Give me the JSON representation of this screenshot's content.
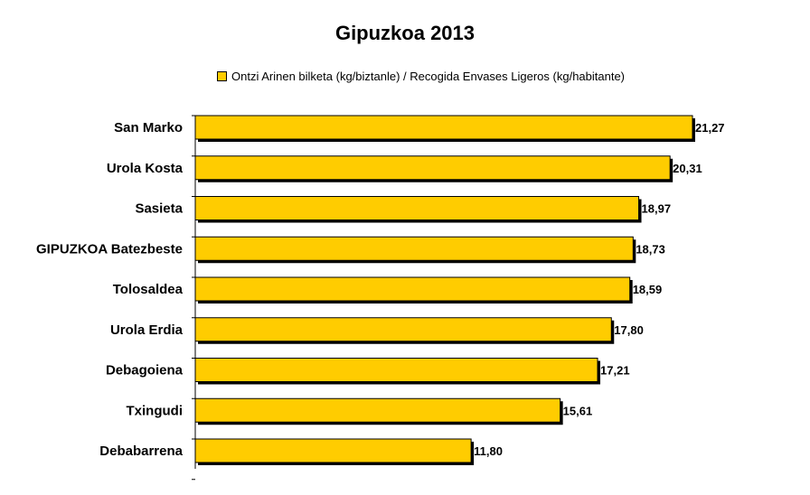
{
  "chart_data": {
    "type": "bar",
    "orientation": "horizontal",
    "title": "Gipuzkoa 2013",
    "categories": [
      "San Marko",
      "Urola Kosta",
      "Sasieta",
      "GIPUZKOA Batezbeste",
      "Tolosaldea",
      "Urola Erdia",
      "Debagoiena",
      "Txingudi",
      "Debabarrena"
    ],
    "series": [
      {
        "name": "Ontzi Arinen bilketa (kg/biztanle) / Recogida Envases Ligeros (kg/habitante)",
        "values": [
          21.27,
          20.31,
          18.97,
          18.73,
          18.59,
          17.8,
          17.21,
          15.61,
          11.8
        ],
        "value_labels": [
          "21,27",
          "20,31",
          "18,97",
          "18,73",
          "18,59",
          "17,80",
          "17,21",
          "15,61",
          "11,80"
        ],
        "color": "#FFCC00"
      }
    ],
    "xlim": [
      0,
      21.27
    ],
    "legend_position": "top",
    "grid": false
  }
}
